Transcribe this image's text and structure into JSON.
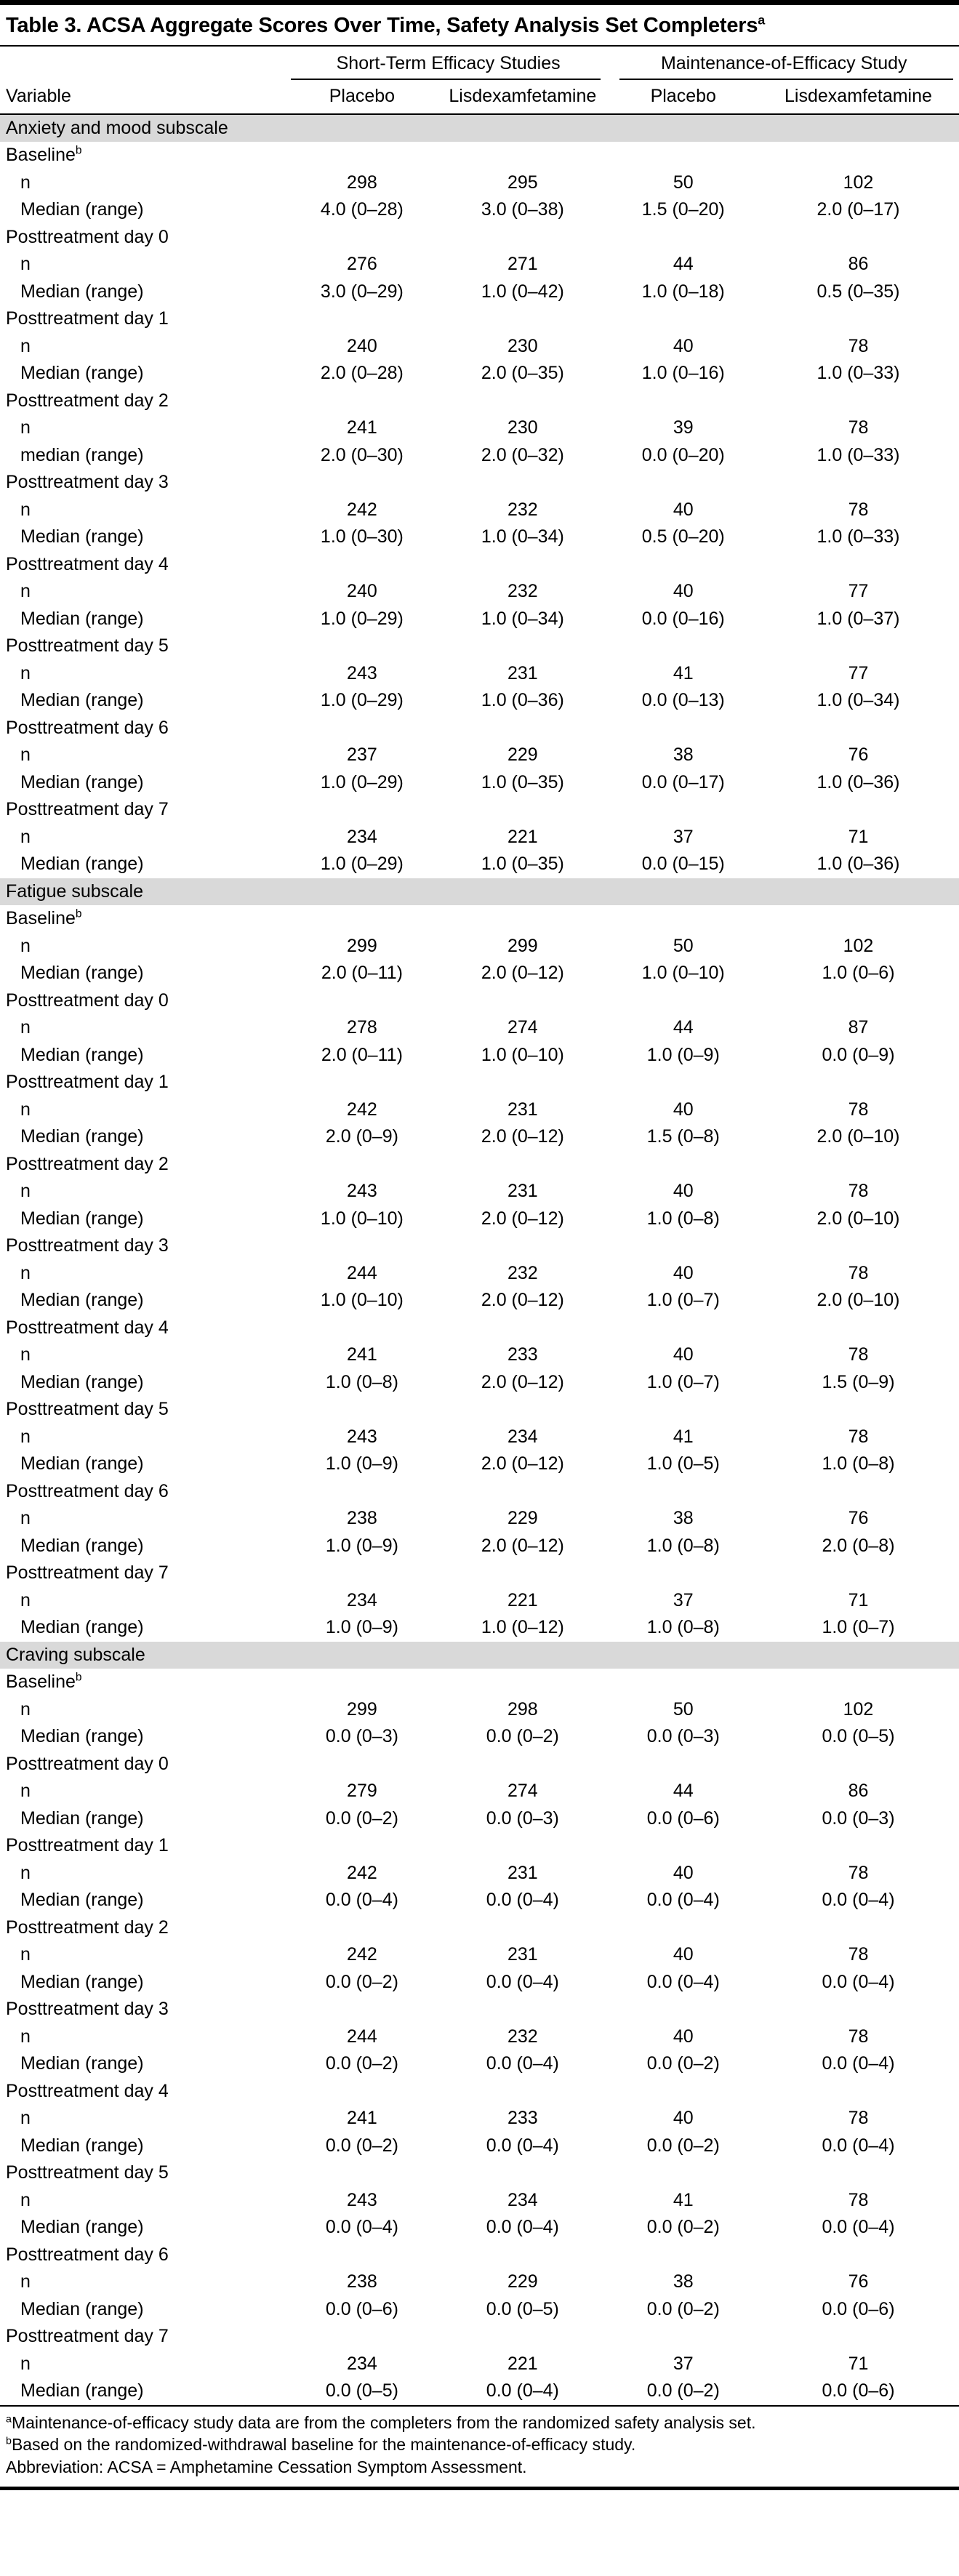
{
  "title": {
    "text": "Table 3. ACSA Aggregate Scores Over Time, Safety Analysis Set Completers",
    "sup": "a"
  },
  "column_groups": [
    {
      "label": "Short-Term Efficacy Studies"
    },
    {
      "label": "Maintenance-of-Efficacy Study"
    }
  ],
  "columns": [
    "Variable",
    "Placebo",
    "Lisdexamfetamine",
    "Placebo",
    "Lisdexamfetamine"
  ],
  "sections": [
    {
      "header": "Anxiety and mood subscale",
      "timepoints": [
        {
          "label": "Baseline",
          "sup": "b",
          "n_label": "n",
          "n": [
            "298",
            "295",
            "50",
            "102"
          ],
          "median_label": "Median (range)",
          "median": [
            "4.0 (0–28)",
            "3.0 (0–38)",
            "1.5 (0–20)",
            "2.0 (0–17)"
          ]
        },
        {
          "label": "Posttreatment day 0",
          "sup": "",
          "n_label": "n",
          "n": [
            "276",
            "271",
            "44",
            "86"
          ],
          "median_label": "Median (range)",
          "median": [
            "3.0 (0–29)",
            "1.0 (0–42)",
            "1.0 (0–18)",
            "0.5 (0–35)"
          ]
        },
        {
          "label": "Posttreatment day 1",
          "sup": "",
          "n_label": "n",
          "n": [
            "240",
            "230",
            "40",
            "78"
          ],
          "median_label": "Median (range)",
          "median": [
            "2.0 (0–28)",
            "2.0 (0–35)",
            "1.0 (0–16)",
            "1.0 (0–33)"
          ]
        },
        {
          "label": "Posttreatment day 2",
          "sup": "",
          "n_label": "n",
          "n": [
            "241",
            "230",
            "39",
            "78"
          ],
          "median_label": "median (range)",
          "median": [
            "2.0 (0–30)",
            "2.0 (0–32)",
            "0.0 (0–20)",
            "1.0 (0–33)"
          ]
        },
        {
          "label": "Posttreatment day 3",
          "sup": "",
          "n_label": "n",
          "n": [
            "242",
            "232",
            "40",
            "78"
          ],
          "median_label": "Median (range)",
          "median": [
            "1.0 (0–30)",
            "1.0 (0–34)",
            "0.5 (0–20)",
            "1.0 (0–33)"
          ]
        },
        {
          "label": "Posttreatment day 4",
          "sup": "",
          "n_label": "n",
          "n": [
            "240",
            "232",
            "40",
            "77"
          ],
          "median_label": "Median (range)",
          "median": [
            "1.0 (0–29)",
            "1.0 (0–34)",
            "0.0 (0–16)",
            "1.0 (0–37)"
          ]
        },
        {
          "label": "Posttreatment day 5",
          "sup": "",
          "n_label": "n",
          "n": [
            "243",
            "231",
            "41",
            "77"
          ],
          "median_label": "Median (range)",
          "median": [
            "1.0 (0–29)",
            "1.0 (0–36)",
            "0.0 (0–13)",
            "1.0 (0–34)"
          ]
        },
        {
          "label": "Posttreatment day 6",
          "sup": "",
          "n_label": "n",
          "n": [
            "237",
            "229",
            "38",
            "76"
          ],
          "median_label": "Median (range)",
          "median": [
            "1.0 (0–29)",
            "1.0 (0–35)",
            "0.0 (0–17)",
            "1.0 (0–36)"
          ]
        },
        {
          "label": "Posttreatment day 7",
          "sup": "",
          "n_label": "n",
          "n": [
            "234",
            "221",
            "37",
            "71"
          ],
          "median_label": "Median (range)",
          "median": [
            "1.0 (0–29)",
            "1.0 (0–35)",
            "0.0 (0–15)",
            "1.0 (0–36)"
          ]
        }
      ]
    },
    {
      "header": "Fatigue subscale",
      "timepoints": [
        {
          "label": "Baseline",
          "sup": "b",
          "n_label": "n",
          "n": [
            "299",
            "299",
            "50",
            "102"
          ],
          "median_label": "Median (range)",
          "median": [
            "2.0 (0–11)",
            "2.0 (0–12)",
            "1.0 (0–10)",
            "1.0 (0–6)"
          ]
        },
        {
          "label": "Posttreatment day 0",
          "sup": "",
          "n_label": "n",
          "n": [
            "278",
            "274",
            "44",
            "87"
          ],
          "median_label": "Median (range)",
          "median": [
            "2.0 (0–11)",
            "1.0 (0–10)",
            "1.0 (0–9)",
            "0.0 (0–9)"
          ]
        },
        {
          "label": "Posttreatment day 1",
          "sup": "",
          "n_label": "n",
          "n": [
            "242",
            "231",
            "40",
            "78"
          ],
          "median_label": "Median (range)",
          "median": [
            "2.0 (0–9)",
            "2.0 (0–12)",
            "1.5 (0–8)",
            "2.0 (0–10)"
          ]
        },
        {
          "label": "Posttreatment day 2",
          "sup": "",
          "n_label": "n",
          "n": [
            "243",
            "231",
            "40",
            "78"
          ],
          "median_label": "Median (range)",
          "median": [
            "1.0 (0–10)",
            "2.0 (0–12)",
            "1.0 (0–8)",
            "2.0 (0–10)"
          ]
        },
        {
          "label": "Posttreatment day 3",
          "sup": "",
          "n_label": "n",
          "n": [
            "244",
            "232",
            "40",
            "78"
          ],
          "median_label": "Median (range)",
          "median": [
            "1.0 (0–10)",
            "2.0 (0–12)",
            "1.0 (0–7)",
            "2.0 (0–10)"
          ]
        },
        {
          "label": "Posttreatment day 4",
          "sup": "",
          "n_label": "n",
          "n": [
            "241",
            "233",
            "40",
            "78"
          ],
          "median_label": "Median (range)",
          "median": [
            "1.0 (0–8)",
            "2.0 (0–12)",
            "1.0 (0–7)",
            "1.5 (0–9)"
          ]
        },
        {
          "label": "Posttreatment day 5",
          "sup": "",
          "n_label": "n",
          "n": [
            "243",
            "234",
            "41",
            "78"
          ],
          "median_label": "Median (range)",
          "median": [
            "1.0 (0–9)",
            "2.0 (0–12)",
            "1.0 (0–5)",
            "1.0 (0–8)"
          ]
        },
        {
          "label": "Posttreatment day 6",
          "sup": "",
          "n_label": "n",
          "n": [
            "238",
            "229",
            "38",
            "76"
          ],
          "median_label": "Median (range)",
          "median": [
            "1.0 (0–9)",
            "2.0 (0–12)",
            "1.0 (0–8)",
            "2.0 (0–8)"
          ]
        },
        {
          "label": "Posttreatment day 7",
          "sup": "",
          "n_label": "n",
          "n": [
            "234",
            "221",
            "37",
            "71"
          ],
          "median_label": "Median (range)",
          "median": [
            "1.0 (0–9)",
            "1.0 (0–12)",
            "1.0 (0–8)",
            "1.0 (0–7)"
          ]
        }
      ]
    },
    {
      "header": "Craving subscale",
      "timepoints": [
        {
          "label": "Baseline",
          "sup": "b",
          "n_label": "n",
          "n": [
            "299",
            "298",
            "50",
            "102"
          ],
          "median_label": "Median (range)",
          "median": [
            "0.0 (0–3)",
            "0.0 (0–2)",
            "0.0 (0–3)",
            "0.0 (0–5)"
          ]
        },
        {
          "label": "Posttreatment day 0",
          "sup": "",
          "n_label": "n",
          "n": [
            "279",
            "274",
            "44",
            "86"
          ],
          "median_label": "Median (range)",
          "median": [
            "0.0 (0–2)",
            "0.0 (0–3)",
            "0.0 (0–6)",
            "0.0 (0–3)"
          ]
        },
        {
          "label": "Posttreatment day 1",
          "sup": "",
          "n_label": "n",
          "n": [
            "242",
            "231",
            "40",
            "78"
          ],
          "median_label": "Median (range)",
          "median": [
            "0.0 (0–4)",
            "0.0 (0–4)",
            "0.0 (0–4)",
            "0.0 (0–4)"
          ]
        },
        {
          "label": "Posttreatment day 2",
          "sup": "",
          "n_label": "n",
          "n": [
            "242",
            "231",
            "40",
            "78"
          ],
          "median_label": "Median (range)",
          "median": [
            "0.0 (0–2)",
            "0.0 (0–4)",
            "0.0 (0–4)",
            "0.0 (0–4)"
          ]
        },
        {
          "label": "Posttreatment day 3",
          "sup": "",
          "n_label": "n",
          "n": [
            "244",
            "232",
            "40",
            "78"
          ],
          "median_label": "Median (range)",
          "median": [
            "0.0 (0–2)",
            "0.0 (0–4)",
            "0.0 (0–2)",
            "0.0 (0–4)"
          ]
        },
        {
          "label": "Posttreatment day 4",
          "sup": "",
          "n_label": "n",
          "n": [
            "241",
            "233",
            "40",
            "78"
          ],
          "median_label": "Median (range)",
          "median": [
            "0.0 (0–2)",
            "0.0 (0–4)",
            "0.0 (0–2)",
            "0.0 (0–4)"
          ]
        },
        {
          "label": "Posttreatment day 5",
          "sup": "",
          "n_label": "n",
          "n": [
            "243",
            "234",
            "41",
            "78"
          ],
          "median_label": "Median (range)",
          "median": [
            "0.0 (0–4)",
            "0.0 (0–4)",
            "0.0 (0–2)",
            "0.0 (0–4)"
          ]
        },
        {
          "label": "Posttreatment day 6",
          "sup": "",
          "n_label": "n",
          "n": [
            "238",
            "229",
            "38",
            "76"
          ],
          "median_label": "Median (range)",
          "median": [
            "0.0 (0–6)",
            "0.0 (0–5)",
            "0.0 (0–2)",
            "0.0 (0–6)"
          ]
        },
        {
          "label": "Posttreatment day 7",
          "sup": "",
          "n_label": "n",
          "n": [
            "234",
            "221",
            "37",
            "71"
          ],
          "median_label": "Median (range)",
          "median": [
            "0.0 (0–5)",
            "0.0 (0–4)",
            "0.0 (0–2)",
            "0.0 (0–6)"
          ]
        }
      ]
    }
  ],
  "footnotes": [
    {
      "sup": "a",
      "text": "Maintenance-of-efficacy study data are from the completers from the randomized safety analysis set."
    },
    {
      "sup": "b",
      "text": "Based on the randomized-withdrawal baseline for the maintenance-of-efficacy study."
    },
    {
      "sup": "",
      "text": "Abbreviation: ACSA = Amphetamine Cessation Symptom Assessment."
    }
  ],
  "colors": {
    "section_header_bg": "#d9d9d9",
    "rule": "#000000",
    "text": "#000000",
    "background": "#ffffff"
  }
}
